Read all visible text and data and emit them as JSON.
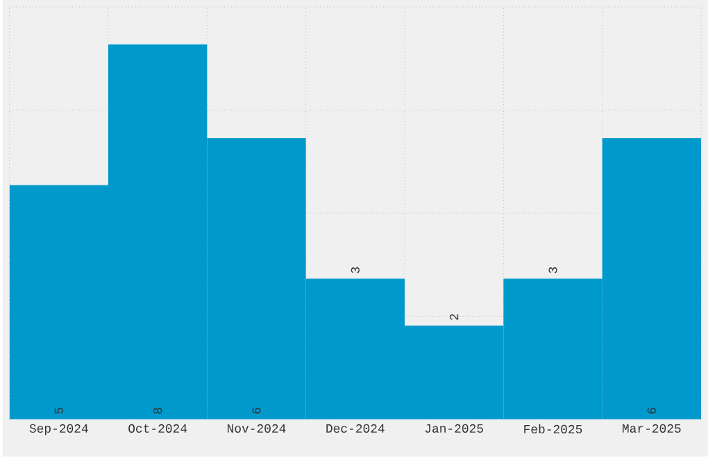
{
  "chart_data": {
    "type": "bar",
    "categories": [
      "Sep-2024",
      "Oct-2024",
      "Nov-2024",
      "Dec-2024",
      "Jan-2025",
      "Feb-2025",
      "Mar-2025"
    ],
    "values": [
      5,
      8,
      6,
      3,
      2,
      3,
      6
    ],
    "color": "#0099cc",
    "ylim": [
      0,
      8.8
    ],
    "yticks": [
      {
        "value": 2.2,
        "label": null
      },
      {
        "value": 4.4,
        "label": null
      },
      {
        "value": 6.6,
        "label": null
      },
      {
        "value": 8.8,
        "label": null
      }
    ],
    "tick_labels": "x",
    "grid": true,
    "data_labels": true
  }
}
